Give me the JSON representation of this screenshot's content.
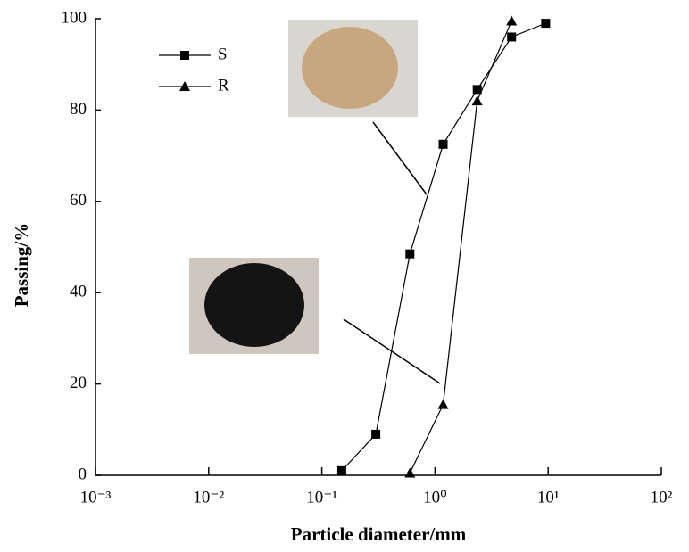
{
  "chart_data": {
    "type": "line",
    "xlabel": "Particle diameter/mm",
    "ylabel": "Passing/%",
    "xscale": "log",
    "xlim": [
      0.001,
      100
    ],
    "xticks": [
      {
        "value": 0.001,
        "label": "10⁻³"
      },
      {
        "value": 0.01,
        "label": "10⁻²"
      },
      {
        "value": 0.1,
        "label": "10⁻¹"
      },
      {
        "value": 1,
        "label": "10⁰"
      },
      {
        "value": 10,
        "label": "10¹"
      },
      {
        "value": 100,
        "label": "10²"
      }
    ],
    "ylim": [
      0,
      100
    ],
    "yticks": [
      0,
      20,
      40,
      60,
      80,
      100
    ],
    "legend": "upper left",
    "series": [
      {
        "name": "S",
        "color": "#000000",
        "marker": "square",
        "x": [
          0.15,
          0.3,
          0.6,
          1.18,
          2.36,
          4.75,
          9.5
        ],
        "values": [
          1,
          9,
          48.5,
          72.5,
          84.5,
          96,
          99
        ]
      },
      {
        "name": "R",
        "color": "#000000",
        "marker": "triangle",
        "x": [
          0.6,
          1.18,
          2.36,
          4.75
        ],
        "values": [
          0.5,
          15.5,
          82,
          99.5
        ]
      }
    ]
  }
}
